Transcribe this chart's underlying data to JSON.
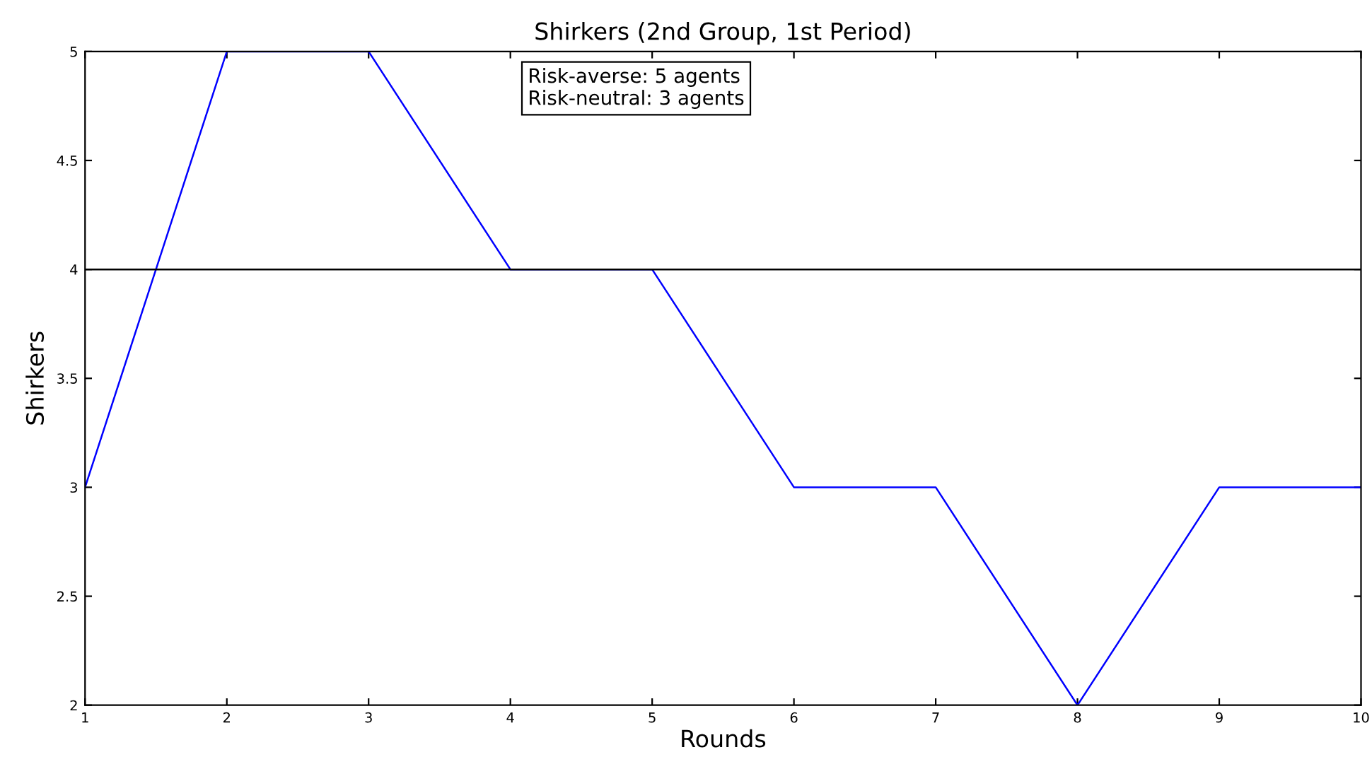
{
  "chart_data": {
    "type": "line",
    "title": "Shirkers (2nd Group, 1st Period)",
    "xlabel": "Rounds",
    "ylabel": "Shirkers",
    "x": [
      1,
      2,
      3,
      4,
      5,
      6,
      7,
      8,
      9,
      10
    ],
    "series": [
      {
        "color": "#0000ff",
        "values": [
          3,
          5,
          5,
          4,
          4,
          3,
          3,
          2,
          3,
          3
        ]
      }
    ],
    "ref_lines": [
      {
        "axis": "y",
        "value": 4,
        "color": "#000000",
        "line_style": "solid"
      }
    ],
    "annotations": [
      "Risk-averse: 5 agents\nRisk-neutral: 3 agents"
    ],
    "xlim": [
      1,
      10
    ],
    "xticks": [
      1,
      2,
      3,
      4,
      5,
      6,
      7,
      8,
      9,
      10
    ],
    "ylim": [
      2,
      5
    ],
    "yticks": [
      2,
      2.5,
      3,
      3.5,
      4,
      4.5,
      5
    ],
    "grid": false,
    "legend": false,
    "marker": "none",
    "line_style": "solid"
  }
}
